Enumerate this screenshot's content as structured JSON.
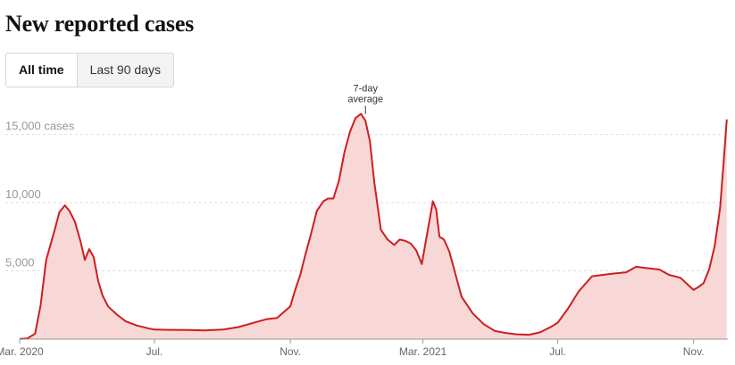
{
  "header": {
    "title": "New reported cases"
  },
  "tabs": [
    {
      "label": "All time",
      "active": true
    },
    {
      "label": "Last 90 days",
      "active": false
    }
  ],
  "colors": {
    "line": "#cc1f1f",
    "fill": "#f8d7d7",
    "grid": "#dddddd"
  },
  "chart_data": {
    "type": "area",
    "title": "New reported cases",
    "xlabel": "",
    "ylabel": "",
    "ylim": [
      0,
      17000
    ],
    "grid": true,
    "y_ticks": [
      {
        "value": 5000,
        "label": "5,000"
      },
      {
        "value": 10000,
        "label": "10,000"
      },
      {
        "value": 15000,
        "label": "15,000 cases"
      }
    ],
    "x_ticks": [
      {
        "date": "2020-03-01",
        "label": "Mar. 2020"
      },
      {
        "date": "2020-07-01",
        "label": "Jul."
      },
      {
        "date": "2020-11-01",
        "label": "Nov."
      },
      {
        "date": "2021-03-01",
        "label": "Mar. 2021"
      },
      {
        "date": "2021-07-01",
        "label": "Jul."
      },
      {
        "date": "2021-11-01",
        "label": "Nov."
      }
    ],
    "x_range": [
      "2020-03-01",
      "2021-12-02"
    ],
    "annotation": {
      "line1": "7-day",
      "line2": "average",
      "date": "2021-01-08",
      "value": 16700
    },
    "series": [
      {
        "x": [
          "2020-03-01",
          "2020-03-08",
          "2020-03-15",
          "2020-03-20",
          "2020-03-25",
          "2020-04-01",
          "2020-04-06",
          "2020-04-11",
          "2020-04-15",
          "2020-04-20",
          "2020-04-25",
          "2020-04-29",
          "2020-05-03",
          "2020-05-07",
          "2020-05-11",
          "2020-05-15",
          "2020-05-20",
          "2020-05-28",
          "2020-06-05",
          "2020-06-15",
          "2020-06-25",
          "2020-07-01",
          "2020-07-15",
          "2020-08-01",
          "2020-08-15",
          "2020-09-01",
          "2020-09-15",
          "2020-10-01",
          "2020-10-10",
          "2020-10-20",
          "2020-11-01",
          "2020-11-05",
          "2020-11-10",
          "2020-11-15",
          "2020-11-20",
          "2020-11-25",
          "2020-12-01",
          "2020-12-05",
          "2020-12-10",
          "2020-12-15",
          "2020-12-20",
          "2020-12-25",
          "2020-12-30",
          "2021-01-04",
          "2021-01-08",
          "2021-01-12",
          "2021-01-16",
          "2021-01-22",
          "2021-01-28",
          "2021-02-03",
          "2021-02-08",
          "2021-02-13",
          "2021-02-18",
          "2021-02-23",
          "2021-02-28",
          "2021-03-05",
          "2021-03-10",
          "2021-03-13",
          "2021-03-16",
          "2021-03-20",
          "2021-03-25",
          "2021-03-30",
          "2021-04-05",
          "2021-04-15",
          "2021-04-25",
          "2021-05-05",
          "2021-05-15",
          "2021-05-25",
          "2021-06-05",
          "2021-06-15",
          "2021-06-25",
          "2021-07-01",
          "2021-07-10",
          "2021-07-20",
          "2021-08-01",
          "2021-08-10",
          "2021-08-20",
          "2021-09-01",
          "2021-09-10",
          "2021-09-20",
          "2021-10-01",
          "2021-10-10",
          "2021-10-20",
          "2021-11-01",
          "2021-11-05",
          "2021-11-10",
          "2021-11-15",
          "2021-11-20",
          "2021-11-25",
          "2021-11-28",
          "2021-12-01"
        ],
        "values": [
          10,
          50,
          400,
          2500,
          5800,
          7800,
          9300,
          9800,
          9400,
          8600,
          7200,
          5800,
          6600,
          6000,
          4300,
          3200,
          2400,
          1800,
          1300,
          1000,
          800,
          700,
          680,
          670,
          640,
          700,
          880,
          1250,
          1450,
          1550,
          2400,
          3500,
          4700,
          6300,
          7800,
          9400,
          10100,
          10300,
          10300,
          11600,
          13700,
          15200,
          16200,
          16500,
          16000,
          14500,
          11500,
          8000,
          7300,
          6900,
          7300,
          7200,
          7000,
          6500,
          5500,
          7800,
          10100,
          9500,
          7500,
          7300,
          6400,
          4900,
          3100,
          1900,
          1100,
          600,
          450,
          350,
          320,
          500,
          900,
          1200,
          2200,
          3500,
          4600,
          4700,
          4800,
          4900,
          5300,
          5200,
          5100,
          4700,
          4500,
          3600,
          3800,
          4100,
          5100,
          6800,
          9600,
          12800,
          16100
        ]
      }
    ]
  }
}
